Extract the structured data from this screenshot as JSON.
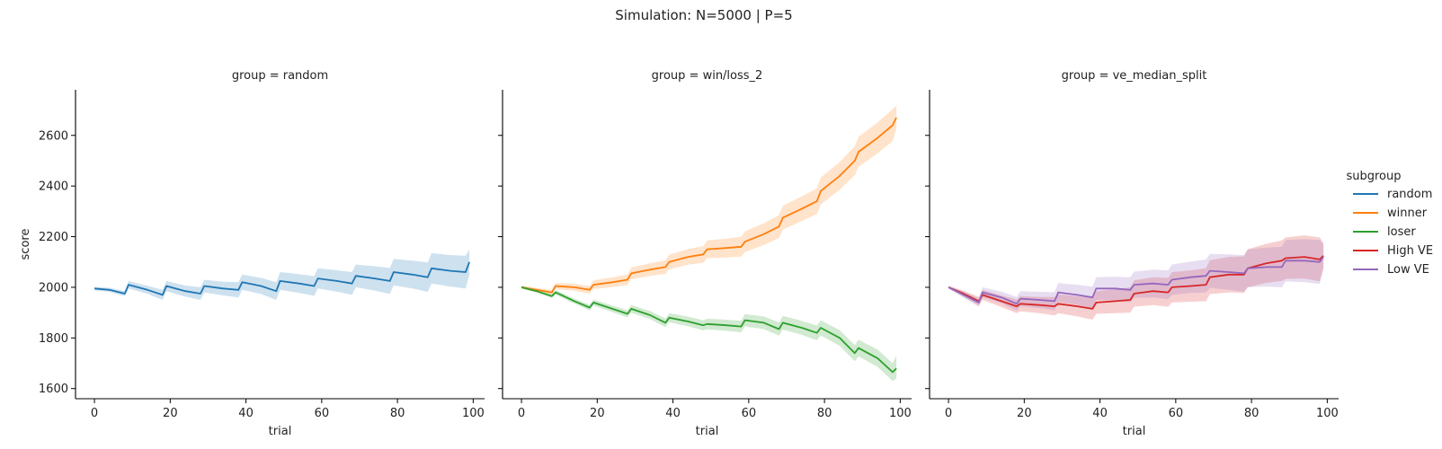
{
  "chart_data": {
    "type": "line",
    "title": "Simulation: N=5000 | P=5",
    "xlabel": "trial",
    "ylabel": "score",
    "xlim": [
      -5,
      103
    ],
    "ylim": [
      1560,
      2780
    ],
    "xticks": [
      0,
      20,
      40,
      60,
      80,
      100
    ],
    "yticks": [
      1600,
      1800,
      2000,
      2200,
      2400,
      2600
    ],
    "sharey": true,
    "legend": {
      "title": "subgroup",
      "placement": "right",
      "entries": [
        {
          "name": "random",
          "color": "#1f77b4"
        },
        {
          "name": "winner",
          "color": "#ff7f0e"
        },
        {
          "name": "loser",
          "color": "#2ca02c"
        },
        {
          "name": "High VE",
          "color": "#d62728"
        },
        {
          "name": "Low VE",
          "color": "#9467bd"
        }
      ]
    },
    "facets": [
      {
        "title": "group = random",
        "series": [
          {
            "name": "random",
            "color": "#1f77b4",
            "x": [
              0,
              4,
              8,
              9,
              14,
              18,
              19,
              24,
              28,
              29,
              34,
              38,
              39,
              44,
              48,
              49,
              54,
              58,
              59,
              64,
              68,
              69,
              74,
              78,
              79,
              84,
              88,
              89,
              94,
              98,
              99
            ],
            "y": [
              1995,
              1990,
              1975,
              2010,
              1990,
              1970,
              2005,
              1985,
              1975,
              2005,
              1995,
              1990,
              2020,
              2005,
              1985,
              2025,
              2015,
              2005,
              2035,
              2025,
              2015,
              2045,
              2035,
              2025,
              2060,
              2050,
              2040,
              2075,
              2065,
              2060,
              2100
            ],
            "ci_lower": [
              1988,
              1982,
              1965,
              1995,
              1974,
              1950,
              1985,
              1963,
              1950,
              1980,
              1968,
              1960,
              1990,
              1973,
              1950,
              1990,
              1978,
              1966,
              1995,
              1983,
              1970,
              2000,
              1987,
              1974,
              2008,
              1995,
              1982,
              2015,
              2003,
              1995,
              2050
            ],
            "ci_upper": [
              2002,
              1998,
              1985,
              2025,
              2006,
              1990,
              2025,
              2007,
              2000,
              2030,
              2022,
              2020,
              2050,
              2037,
              2020,
              2060,
              2052,
              2044,
              2075,
              2067,
              2060,
              2090,
              2083,
              2076,
              2112,
              2105,
              2098,
              2135,
              2127,
              2125,
              2150
            ]
          }
        ]
      },
      {
        "title": "group = win/loss_2",
        "series": [
          {
            "name": "winner",
            "color": "#ff7f0e",
            "x": [
              0,
              4,
              8,
              9,
              14,
              18,
              19,
              24,
              28,
              29,
              34,
              38,
              39,
              44,
              48,
              49,
              54,
              58,
              59,
              64,
              68,
              69,
              74,
              78,
              79,
              84,
              88,
              89,
              94,
              98,
              99
            ],
            "y": [
              2000,
              1990,
              1980,
              2005,
              2000,
              1990,
              2010,
              2020,
              2030,
              2055,
              2070,
              2080,
              2100,
              2120,
              2130,
              2150,
              2155,
              2160,
              2180,
              2210,
              2240,
              2275,
              2310,
              2340,
              2380,
              2440,
              2500,
              2535,
              2590,
              2640,
              2670
            ],
            "ci_lower": [
              1993,
              1982,
              1970,
              1993,
              1986,
              1975,
              1993,
              2001,
              2009,
              2032,
              2045,
              2053,
              2071,
              2089,
              2097,
              2115,
              2118,
              2121,
              2139,
              2167,
              2195,
              2228,
              2261,
              2289,
              2327,
              2385,
              2443,
              2476,
              2529,
              2577,
              2627
            ],
            "ci_upper": [
              2007,
              1998,
              1990,
              2017,
              2014,
              2005,
              2027,
              2039,
              2051,
              2078,
              2095,
              2107,
              2129,
              2151,
              2163,
              2185,
              2192,
              2199,
              2221,
              2253,
              2285,
              2322,
              2359,
              2391,
              2433,
              2495,
              2557,
              2594,
              2651,
              2703,
              2718
            ]
          },
          {
            "name": "loser",
            "color": "#2ca02c",
            "x": [
              0,
              4,
              8,
              9,
              14,
              18,
              19,
              24,
              28,
              29,
              34,
              38,
              39,
              44,
              48,
              49,
              54,
              58,
              59,
              64,
              68,
              69,
              74,
              78,
              79,
              84,
              88,
              89,
              94,
              98,
              99
            ],
            "y": [
              2000,
              1985,
              1965,
              1980,
              1945,
              1920,
              1940,
              1915,
              1895,
              1915,
              1890,
              1860,
              1880,
              1865,
              1850,
              1855,
              1850,
              1845,
              1870,
              1860,
              1835,
              1860,
              1840,
              1820,
              1840,
              1800,
              1740,
              1760,
              1720,
              1665,
              1680
            ],
            "ci_lower": [
              1995,
              1979,
              1958,
              1971,
              1935,
              1909,
              1928,
              1902,
              1881,
              1900,
              1874,
              1843,
              1862,
              1846,
              1830,
              1834,
              1828,
              1822,
              1846,
              1835,
              1809,
              1833,
              1812,
              1791,
              1810,
              1769,
              1708,
              1727,
              1686,
              1630,
              1640
            ],
            "ci_upper": [
              2005,
              1991,
              1972,
              1989,
              1955,
              1931,
              1952,
              1928,
              1909,
              1930,
              1906,
              1877,
              1898,
              1884,
              1870,
              1876,
              1872,
              1868,
              1894,
              1885,
              1861,
              1887,
              1868,
              1849,
              1870,
              1831,
              1772,
              1793,
              1754,
              1700,
              1730
            ]
          }
        ]
      },
      {
        "title": "group = ve_median_split",
        "series": [
          {
            "name": "High VE",
            "color": "#d62728",
            "x": [
              0,
              4,
              8,
              9,
              14,
              18,
              19,
              24,
              28,
              29,
              34,
              38,
              39,
              44,
              48,
              49,
              54,
              58,
              59,
              64,
              68,
              69,
              74,
              78,
              79,
              84,
              88,
              89,
              94,
              98,
              99
            ],
            "y": [
              2000,
              1975,
              1945,
              1970,
              1945,
              1925,
              1935,
              1930,
              1925,
              1935,
              1925,
              1915,
              1940,
              1945,
              1950,
              1975,
              1985,
              1980,
              2000,
              2005,
              2010,
              2040,
              2050,
              2050,
              2075,
              2095,
              2105,
              2115,
              2120,
              2110,
              2125
            ],
            "ci_lower": [
              1995,
              1963,
              1928,
              1950,
              1922,
              1898,
              1905,
              1898,
              1889,
              1898,
              1885,
              1872,
              1895,
              1898,
              1900,
              1923,
              1930,
              1923,
              1940,
              1943,
              1945,
              1973,
              1980,
              1978,
              2000,
              2018,
              2025,
              2033,
              2035,
              2023,
              2080
            ],
            "ci_upper": [
              2005,
              1987,
              1962,
              1990,
              1968,
              1952,
              1965,
              1962,
              1961,
              1972,
              1965,
              1958,
              1985,
              1992,
              2000,
              2027,
              2040,
              2037,
              2060,
              2067,
              2075,
              2107,
              2120,
              2122,
              2150,
              2172,
              2185,
              2197,
              2205,
              2197,
              2175
            ]
          },
          {
            "name": "Low VE",
            "color": "#9467bd",
            "x": [
              0,
              4,
              8,
              9,
              14,
              18,
              19,
              24,
              28,
              29,
              34,
              38,
              39,
              44,
              48,
              49,
              54,
              58,
              59,
              64,
              68,
              69,
              74,
              78,
              79,
              84,
              88,
              89,
              94,
              98,
              99
            ],
            "y": [
              2000,
              1970,
              1940,
              1980,
              1960,
              1935,
              1955,
              1950,
              1945,
              1980,
              1970,
              1960,
              1995,
              1995,
              1990,
              2010,
              2015,
              2010,
              2030,
              2040,
              2045,
              2065,
              2060,
              2055,
              2075,
              2080,
              2080,
              2105,
              2105,
              2100,
              2120
            ],
            "ci_lower": [
              1995,
              1958,
              1923,
              1960,
              1937,
              1908,
              1925,
              1918,
              1909,
              1943,
              1930,
              1917,
              1950,
              1948,
              1940,
              1958,
              1960,
              1953,
              1970,
              1978,
              1980,
              1998,
              1990,
              1983,
              2000,
              2003,
              2000,
              2023,
              2020,
              2013,
              2070
            ],
            "ci_upper": [
              2005,
              1982,
              1957,
              2000,
              1983,
              1962,
              1985,
              1982,
              1981,
              2017,
              2010,
              2003,
              2040,
              2042,
              2040,
              2062,
              2070,
              2067,
              2090,
              2102,
              2110,
              2132,
              2130,
              2127,
              2150,
              2157,
              2160,
              2187,
              2190,
              2187,
              2170
            ]
          }
        ]
      }
    ]
  }
}
